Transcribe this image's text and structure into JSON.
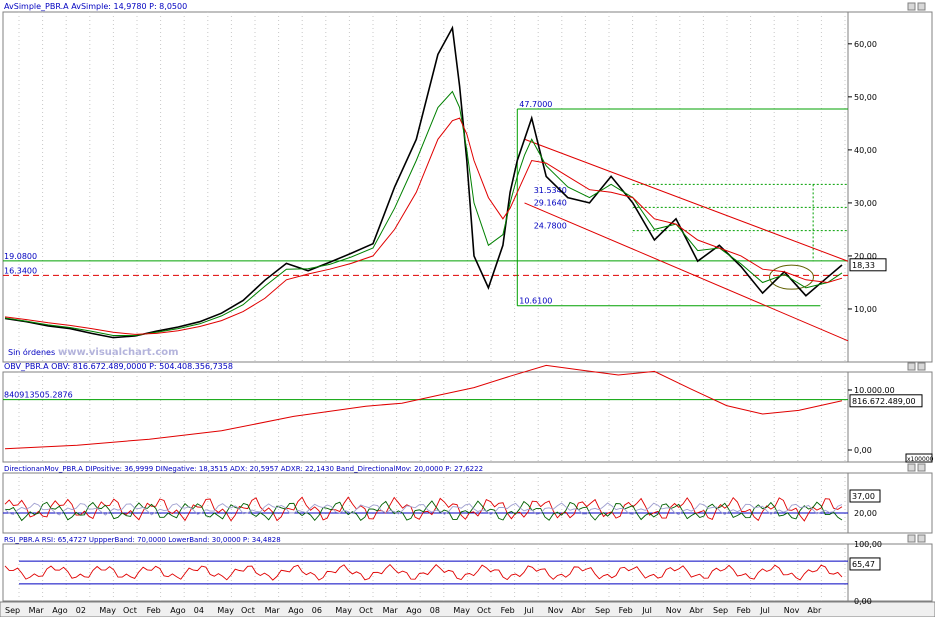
{
  "chart_data": [
    {
      "type": "line",
      "panel": "price",
      "header": {
        "indicator": "AvSimple_PBR.A",
        "label": "AvSimple:",
        "value": "14,9780",
        "p_label": "P:",
        "p_value": "8,0500"
      },
      "y_ticks": [
        "60,00",
        "50,00",
        "40,00",
        "30,00",
        "20,00",
        "10,00"
      ],
      "ylim": [
        0,
        66
      ],
      "x": [
        0,
        3,
        6,
        9,
        12,
        15,
        18,
        21,
        24,
        27,
        30,
        33,
        36,
        39,
        42,
        45,
        48,
        51,
        54,
        57,
        60,
        62,
        63,
        64,
        65,
        67,
        69,
        70,
        71,
        72,
        73,
        75,
        78,
        81,
        84,
        87,
        90,
        93,
        96,
        99,
        102,
        105,
        108,
        111,
        114,
        116
      ],
      "series": [
        {
          "values": [
            8.2,
            7.6,
            6.8,
            6.3,
            5.4,
            4.6,
            4.9,
            5.8,
            6.6,
            7.6,
            9.2,
            11.6,
            15.4,
            18.6,
            17.2,
            18.8,
            20.5,
            22.3,
            33.0,
            42.0,
            58.0,
            63.0,
            52.0,
            38.0,
            20.0,
            14.0,
            22.0,
            32.0,
            38.0,
            42.0,
            46.0,
            35.0,
            31.0,
            30.0,
            35.0,
            30.0,
            23.0,
            27.0,
            19.0,
            22.0,
            18.0,
            13.0,
            17.0,
            12.5,
            16.0,
            18.3
          ]
        },
        {
          "values": [
            8.3,
            7.7,
            7.0,
            6.5,
            5.8,
            5.0,
            5.0,
            5.6,
            6.3,
            7.2,
            8.7,
            10.8,
            14.3,
            17.5,
            17.6,
            18.4,
            19.8,
            21.5,
            29.0,
            38.0,
            48.0,
            51.0,
            48.0,
            40.0,
            30.0,
            22.0,
            24.0,
            30.0,
            35.0,
            39.0,
            42.0,
            37.0,
            33.0,
            31.0,
            33.5,
            31.0,
            25.0,
            26.0,
            21.0,
            21.5,
            18.5,
            15.0,
            16.5,
            14.0,
            15.0,
            16.8
          ]
        },
        {
          "values": [
            8.5,
            8.0,
            7.4,
            6.9,
            6.3,
            5.6,
            5.2,
            5.4,
            5.9,
            6.7,
            7.8,
            9.5,
            12.0,
            15.5,
            16.6,
            17.5,
            18.6,
            20.0,
            25.0,
            32.0,
            42.0,
            45.5,
            46.0,
            43.0,
            38.0,
            31.0,
            27.0,
            29.0,
            32.0,
            35.0,
            38.0,
            37.5,
            35.0,
            32.5,
            32.0,
            31.0,
            27.0,
            26.0,
            23.0,
            21.5,
            20.0,
            17.5,
            17.0,
            15.5,
            15.0,
            15.8
          ]
        }
      ],
      "annotations": [
        "19.0800",
        "16.3400",
        "47.7000",
        "31.5340",
        "29.1640",
        "24.7800",
        "10.6100"
      ],
      "last_value": "18,33",
      "overlay_button": "Sin órdenes",
      "watermark": "www.visualchart.com"
    },
    {
      "type": "line",
      "panel": "obv",
      "header": {
        "indicator": "OBV_PBR.A",
        "label": "OBV:",
        "value": "816.672.489,0000",
        "p_label": "P:",
        "p_value": "504.408.356,7358"
      },
      "y_ticks": [
        "10.000.00",
        "0,00"
      ],
      "ylim": [
        -2,
        13
      ],
      "scale_box": "x100000",
      "x": [
        0,
        10,
        20,
        30,
        40,
        50,
        55,
        60,
        65,
        70,
        75,
        80,
        85,
        90,
        95,
        100,
        105,
        110,
        116
      ],
      "series": [
        {
          "values": [
            0.2,
            0.8,
            1.8,
            3.2,
            5.6,
            7.3,
            7.8,
            9.1,
            10.4,
            12.3,
            14.1,
            13.3,
            12.5,
            13.1,
            10.2,
            7.4,
            6.0,
            6.6,
            8.2
          ]
        }
      ],
      "annotations": [
        "840913505.2876"
      ],
      "last_value": "816.672.489,00"
    },
    {
      "type": "line",
      "panel": "directional",
      "header": {
        "indicator": "DirectionanMov_PBR.A",
        "items": [
          "DIPositive: 36,9999",
          "DINegative: 18,3515",
          "ADX: 20,5957",
          "ADXR: 22,1430",
          "Band_DirectionalMov: 20,0000",
          "P: 27,6222"
        ]
      },
      "y_ticks": [
        "20,00"
      ],
      "ylim": [
        0,
        60
      ],
      "last_value": "37,00"
    },
    {
      "type": "line",
      "panel": "rsi",
      "header": {
        "indicator": "RSI_PBR.A",
        "items": [
          "RSI: 65,4727",
          "UppperBand: 70,0000",
          "LowerBand: 30,0000",
          "P: 34,4828"
        ]
      },
      "y_ticks": [
        "100,00",
        "0,00"
      ],
      "ylim": [
        0,
        100
      ],
      "last_value": "65,47"
    }
  ],
  "x_axis_labels": [
    "Sep",
    "Mar",
    "Ago",
    "02",
    "May",
    "Oct",
    "Feb",
    "Ago",
    "04",
    "May",
    "Oct",
    "Mar",
    "Ago",
    "06",
    "May",
    "Oct",
    "Mar",
    "Ago",
    "08",
    "May",
    "Oct",
    "Feb",
    "Jul",
    "Nov",
    "Abr",
    "Sep",
    "Feb",
    "Jul",
    "Nov",
    "Abr",
    "Sep",
    "Feb",
    "Jul",
    "Nov",
    "Abr"
  ],
  "colors": {
    "price": "#000000",
    "ma_short": "#008000",
    "ma_long": "#e00000",
    "trend_channel": "#e00000",
    "levels": "#00a000",
    "support": "#e00000",
    "obv": "#e00000",
    "rsi": "#e00000",
    "band": "#0000c0",
    "text_blue": "#0000c0"
  }
}
